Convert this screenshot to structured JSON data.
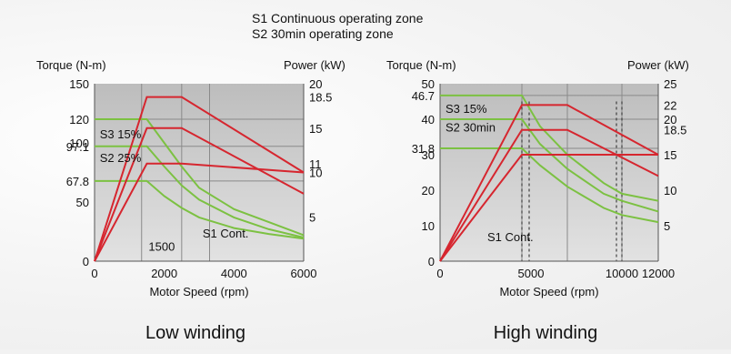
{
  "header": {
    "legend_s1": "S1 Continuous operating zone",
    "legend_s2": "S2 30min operating zone"
  },
  "colors": {
    "torque": "#7cc142",
    "power": "#d6262f",
    "plot_bg": "#bdbdbd",
    "plot_bg_light": "#e2e2e2"
  },
  "chart_data": [
    {
      "type": "line",
      "caption": "Low winding",
      "xlabel": "Motor Speed (rpm)",
      "ylabel_left": "Torque (N-m)",
      "ylabel_right": "Power (kW)",
      "xlim": [
        0,
        6000
      ],
      "ylim_left": [
        0,
        150
      ],
      "ylim_right": [
        0,
        20
      ],
      "x_ticks": [
        {
          "v": 0,
          "t": "0"
        },
        {
          "v": 2000,
          "t": "2000"
        },
        {
          "v": 4000,
          "t": "4000"
        },
        {
          "v": 6000,
          "t": "6000"
        }
      ],
      "left_ticks": [
        {
          "v": 0,
          "t": "0"
        },
        {
          "v": 50,
          "t": "50"
        },
        {
          "v": 100,
          "t": "100"
        },
        {
          "v": 150,
          "t": "150"
        }
      ],
      "right_ticks": [
        {
          "v": 5,
          "t": "5"
        },
        {
          "v": 10,
          "t": "10"
        },
        {
          "v": 11,
          "t": "11"
        },
        {
          "v": 15,
          "t": "15"
        },
        {
          "v": 18.5,
          "t": "18.5"
        },
        {
          "v": 20,
          "t": "20"
        }
      ],
      "torque_labels": [
        {
          "v": 120,
          "t": "120"
        },
        {
          "v": 97.1,
          "t": "97.1"
        },
        {
          "v": 67.8,
          "t": "67.8"
        }
      ],
      "annotations": [
        {
          "t": "S3 15%",
          "x": 150,
          "y": 104
        },
        {
          "t": "S2 25%",
          "x": 150,
          "y": 84
        },
        {
          "t": "S1 Cont.",
          "x": 3100,
          "y": 20
        },
        {
          "t": "1500",
          "x": 1550,
          "y": 9
        }
      ],
      "grid_x": [
        1350,
        2500,
        3300
      ],
      "grid_y": [
        67.8,
        97.1,
        120
      ],
      "power_series": [
        {
          "name": "S3 15%",
          "x": [
            0,
            1500,
            2500,
            6000
          ],
          "y": [
            0,
            18.5,
            18.5,
            10
          ]
        },
        {
          "name": "S2 25%",
          "x": [
            0,
            1500,
            2500,
            6000
          ],
          "y": [
            0,
            15,
            15,
            7.6
          ]
        },
        {
          "name": "S1 Cont.",
          "x": [
            0,
            1500,
            2500,
            6000
          ],
          "y": [
            0,
            11,
            11,
            10
          ]
        }
      ],
      "torque_series": [
        {
          "name": "S3 15%",
          "x": [
            0,
            1500,
            2000,
            2500,
            3000,
            4000,
            5000,
            6000
          ],
          "y": [
            120,
            120,
            100,
            80,
            62,
            44,
            33,
            22
          ]
        },
        {
          "name": "S2 25%",
          "x": [
            0,
            1500,
            2000,
            2500,
            3000,
            4000,
            5000,
            6000
          ],
          "y": [
            97.1,
            97.1,
            80,
            64,
            52,
            37,
            27,
            20
          ]
        },
        {
          "name": "S1 Cont.",
          "x": [
            0,
            1500,
            2000,
            2500,
            3000,
            4000,
            5000,
            6000
          ],
          "y": [
            67.8,
            67.8,
            55,
            45,
            37,
            28,
            23,
            19
          ]
        }
      ]
    },
    {
      "type": "line",
      "caption": "High winding",
      "xlabel": "Motor Speed (rpm)",
      "ylabel_left": "Torque (N-m)",
      "ylabel_right": "Power (kW)",
      "xlim": [
        0,
        12000
      ],
      "ylim_left": [
        0,
        50
      ],
      "ylim_right": [
        0,
        25
      ],
      "x_ticks": [
        {
          "v": 0,
          "t": "0"
        },
        {
          "v": 5000,
          "t": "5000"
        },
        {
          "v": 10000,
          "t": "10000"
        },
        {
          "v": 12000,
          "t": "12000"
        }
      ],
      "left_ticks": [
        {
          "v": 0,
          "t": "0"
        },
        {
          "v": 10,
          "t": "10"
        },
        {
          "v": 20,
          "t": "20"
        },
        {
          "v": 30,
          "t": "30"
        },
        {
          "v": 40,
          "t": "40"
        },
        {
          "v": 50,
          "t": "50"
        }
      ],
      "right_ticks": [
        {
          "v": 5,
          "t": "5"
        },
        {
          "v": 10,
          "t": "10"
        },
        {
          "v": 15,
          "t": "15"
        },
        {
          "v": 18.5,
          "t": "18.5"
        },
        {
          "v": 20,
          "t": "20"
        },
        {
          "v": 22,
          "t": "22"
        },
        {
          "v": 25,
          "t": "25"
        }
      ],
      "torque_labels": [
        {
          "v": 46.7,
          "t": "46.7"
        },
        {
          "v": 31.8,
          "t": "31.8"
        }
      ],
      "annotations": [
        {
          "t": "S3 15%",
          "x": 300,
          "y": 41.8
        },
        {
          "t": "S2 30min",
          "x": 300,
          "y": 36.5
        },
        {
          "t": "S1 Cont.",
          "x": 2600,
          "y": 5.6
        }
      ],
      "grid_x": [
        4500,
        7000,
        10000
      ],
      "grid_y": [
        31.8,
        40,
        46.7
      ],
      "dashed_x": [
        4500,
        4900,
        9700,
        10000
      ],
      "power_series": [
        {
          "name": "S3 15%",
          "x": [
            0,
            4500,
            7000,
            12000
          ],
          "y": [
            0,
            22,
            22,
            15
          ]
        },
        {
          "name": "S2 30min",
          "x": [
            0,
            4500,
            7000,
            12000
          ],
          "y": [
            0,
            18.5,
            18.5,
            12
          ]
        },
        {
          "name": "S1 Cont.",
          "x": [
            0,
            4500,
            7000,
            12000
          ],
          "y": [
            0,
            15,
            15,
            15
          ]
        }
      ],
      "torque_series": [
        {
          "name": "S3 15%",
          "x": [
            0,
            4500,
            5500,
            7000,
            9000,
            10000,
            12000
          ],
          "y": [
            46.7,
            46.7,
            38,
            30,
            22,
            19,
            17
          ]
        },
        {
          "name": "S2 30min",
          "x": [
            0,
            4500,
            5500,
            7000,
            9000,
            10000,
            12000
          ],
          "y": [
            40,
            40,
            33,
            26,
            19,
            17,
            14
          ]
        },
        {
          "name": "S1 Cont.",
          "x": [
            0,
            4500,
            5500,
            7000,
            9000,
            10000,
            12000
          ],
          "y": [
            31.8,
            31.8,
            27,
            21,
            15,
            13,
            11
          ]
        }
      ]
    }
  ]
}
